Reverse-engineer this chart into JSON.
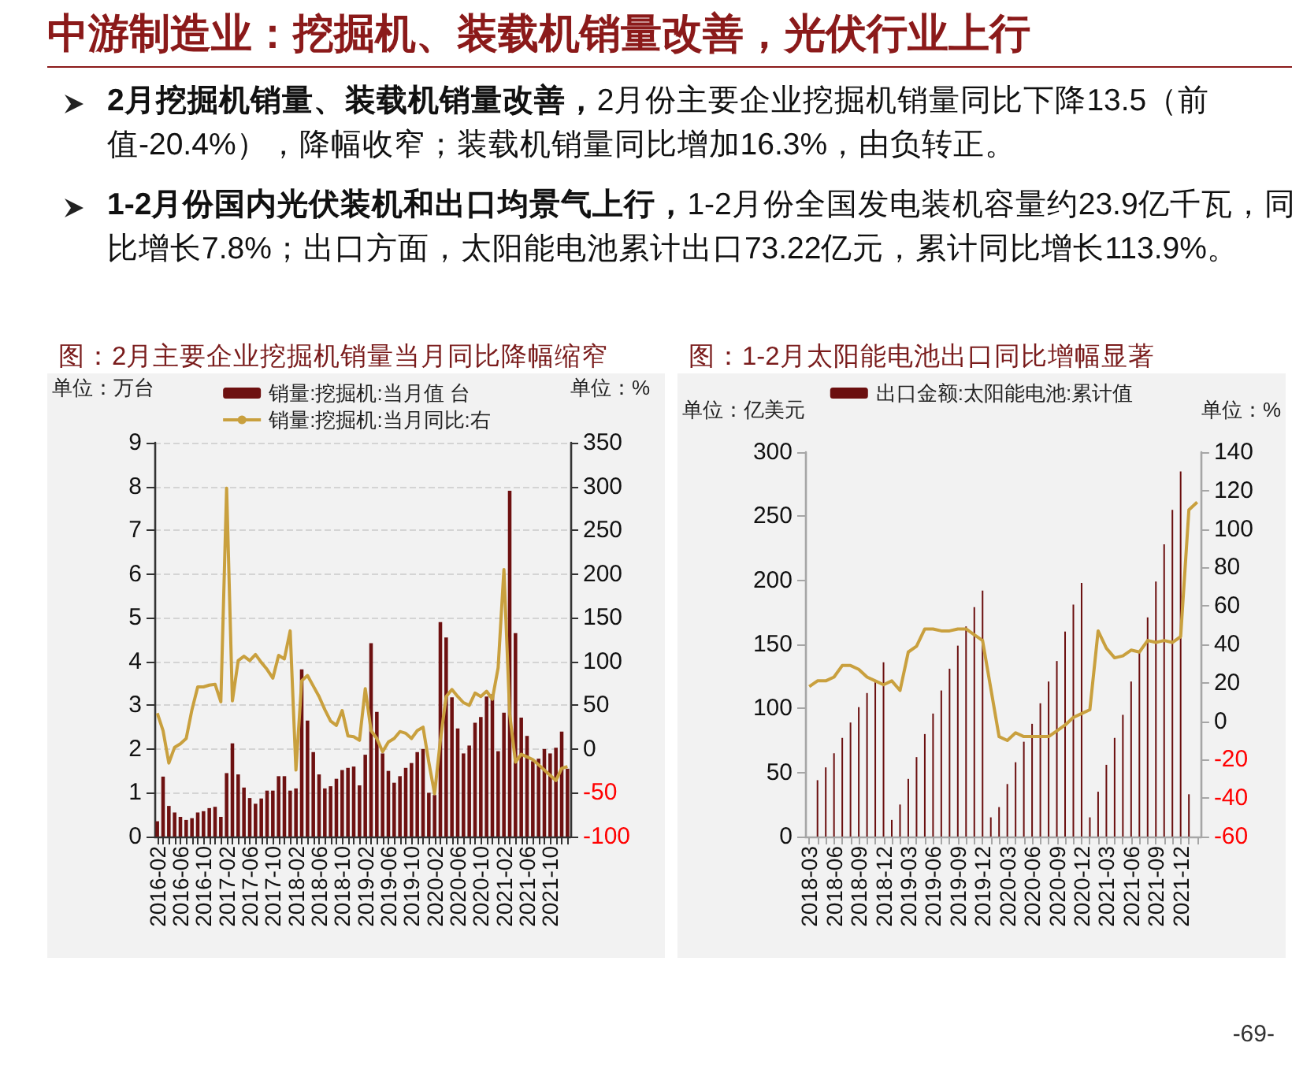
{
  "chart_data": [
    {
      "type": "other",
      "title": "中游制造业：挖掘机、装载机销量改善，光伏行业上行",
      "annotations": [
        "2月挖掘机销量、装载机销量改善，",
        "2月份主要企业挖掘机销量同比下降13.5（前值-20.4%），降幅收窄；装载机销量同比增加16.3%，由负转正。",
        "1-2月份国内光伏装机和出口均景气上行，",
        "1-2月份全国发电装机容量约23.9亿千瓦，同比增长7.8%；出口方面，太阳能电池累计出口73.22亿元，累计同比增长113.9%。",
        "-69-"
      ]
    },
    {
      "type": "bar",
      "title": "图：2月主要企业挖掘机销量当月同比降幅缩窄",
      "ylabel": "单位：万台",
      "y2label": "单位：%",
      "categories": [
        "2016-02",
        null,
        null,
        null,
        "2016-06",
        null,
        null,
        null,
        "2016-10",
        null,
        null,
        null,
        "2017-02",
        null,
        null,
        null,
        "2017-06",
        null,
        null,
        null,
        "2017-10",
        null,
        null,
        null,
        "2018-02",
        null,
        null,
        null,
        "2018-06",
        null,
        null,
        null,
        "2018-10",
        null,
        null,
        null,
        "2019-02",
        null,
        null,
        null,
        "2019-06",
        null,
        null,
        null,
        "2019-10",
        null,
        null,
        null,
        "2020-02",
        null,
        null,
        null,
        "2020-06",
        null,
        null,
        null,
        "2020-10",
        null,
        null,
        null,
        "2021-02",
        null,
        null,
        null,
        "2021-06",
        null,
        null,
        null,
        "2021-10",
        null,
        null,
        null
      ],
      "series": [
        {
          "name": "销量:挖掘机:当月值 台",
          "color": "#6e1111",
          "values": [
            0.35,
            1.37,
            0.7,
            0.55,
            0.45,
            0.38,
            0.42,
            0.55,
            0.58,
            0.65,
            0.68,
            0.45,
            1.45,
            2.13,
            1.42,
            1.12,
            0.88,
            0.75,
            0.87,
            1.05,
            1.05,
            1.38,
            1.38,
            1.05,
            1.1,
            3.82,
            2.65,
            1.93,
            1.42,
            1.1,
            1.15,
            1.32,
            1.52,
            1.57,
            1.6,
            1.17,
            1.87,
            4.42,
            2.85,
            1.9,
            1.5,
            1.23,
            1.38,
            1.57,
            1.68,
            1.93,
            2.0,
            1.0,
            0.95,
            4.9,
            4.55,
            3.18,
            2.47,
            1.9,
            2.08,
            2.6,
            2.73,
            3.2,
            3.25,
            1.95,
            2.83,
            7.9,
            4.65,
            2.72,
            2.3,
            1.72,
            1.78,
            2.0,
            1.9,
            2.03,
            2.4,
            1.55
          ]
        },
        {
          "type": "line",
          "name": "销量:挖掘机:当月同比:右",
          "color": "#c9a03e",
          "axis": "y2",
          "values": [
            41,
            21,
            -16,
            2,
            6,
            12,
            45,
            71,
            71,
            73,
            74,
            54,
            298,
            55,
            101,
            106,
            101,
            108,
            99,
            91,
            81,
            107,
            103,
            135,
            -24,
            78,
            84,
            72,
            60,
            45,
            32,
            27,
            44,
            15,
            14,
            10,
            69,
            21,
            12,
            -3,
            8,
            12,
            20,
            18,
            12,
            21,
            25,
            -15,
            -51,
            10,
            60,
            68,
            60,
            53,
            50,
            64,
            60,
            66,
            57,
            93,
            205,
            40,
            -15,
            -6,
            -9,
            -12,
            -18,
            -24,
            -30,
            -36,
            -22,
            -20
          ]
        }
      ],
      "ylim": [
        0,
        9
      ],
      "yticks": [
        0,
        1,
        2,
        3,
        4,
        5,
        6,
        7,
        8,
        9
      ],
      "y2lim": [
        -100,
        350
      ],
      "y2ticks": [
        -100,
        -50,
        0,
        50,
        100,
        150,
        200,
        250,
        300,
        350
      ],
      "grid": "y",
      "legend": "top",
      "marker": "none"
    },
    {
      "type": "bar",
      "title": "图：1-2月太阳能电池出口同比增幅显著",
      "ylabel": "单位：亿美元",
      "y2label": "单位：%",
      "categories": [
        "2018-03",
        null,
        null,
        "2018-06",
        null,
        null,
        "2018-09",
        null,
        null,
        "2018-12",
        null,
        null,
        "2019-03",
        null,
        null,
        "2019-06",
        null,
        null,
        "2019-09",
        null,
        null,
        "2019-12",
        null,
        null,
        "2020-03",
        null,
        null,
        "2020-06",
        null,
        null,
        "2020-09",
        null,
        null,
        "2020-12",
        null,
        null,
        "2021-03",
        null,
        null,
        "2021-06",
        null,
        null,
        "2021-09",
        null,
        null,
        "2021-12",
        null,
        null
      ],
      "series": [
        {
          "name": "出口金额:太阳能电池:累计值",
          "color": "#6b0f0f",
          "values": [
            null,
            44,
            54,
            65,
            77,
            89,
            101,
            112,
            122,
            136,
            13,
            25,
            45,
            62,
            80,
            96,
            114,
            131,
            149,
            164,
            179,
            192,
            15,
            23,
            41,
            58,
            74,
            88,
            104,
            121,
            137,
            160,
            181,
            198,
            15,
            35,
            56,
            77,
            95,
            121,
            145,
            171,
            199,
            228,
            255,
            285,
            33,
            null
          ]
        },
        {
          "type": "line",
          "color": "#c9a03e",
          "axis": "y2",
          "values": [
            18,
            21,
            21,
            23,
            29,
            29,
            27,
            23,
            21,
            19,
            21,
            16,
            36,
            39,
            48,
            48,
            47,
            47,
            48,
            48,
            45,
            42,
            17,
            -8,
            -10,
            -6,
            -8,
            -8,
            -8,
            -8,
            -5,
            -2,
            2,
            4,
            6,
            47,
            38,
            33,
            34,
            37,
            36,
            42,
            41,
            42,
            41,
            44,
            110,
            114
          ]
        }
      ],
      "ylim": [
        0,
        300
      ],
      "yticks": [
        0,
        50,
        100,
        150,
        200,
        250,
        300
      ],
      "y2lim": [
        -60,
        140
      ],
      "y2ticks": [
        -60,
        -40,
        -20,
        0,
        20,
        40,
        60,
        80,
        100,
        120,
        140
      ],
      "legend": "top",
      "marker": "none"
    }
  ]
}
